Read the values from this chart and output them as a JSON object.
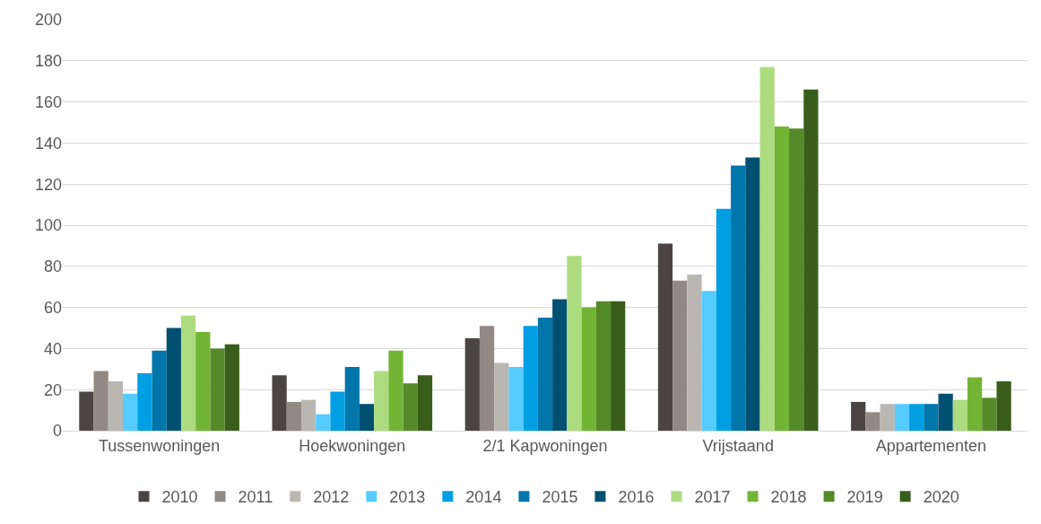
{
  "chart_data": {
    "type": "bar",
    "categories": [
      "Tussenwoningen",
      "Hoekwoningen",
      "2/1 Kapwoningen",
      "Vrijstaand",
      "Appartementen"
    ],
    "series": [
      {
        "name": "2010",
        "color": "#4a4542",
        "values": [
          19,
          27,
          45,
          91,
          14
        ]
      },
      {
        "name": "2011",
        "color": "#908984",
        "values": [
          29,
          14,
          51,
          73,
          9
        ]
      },
      {
        "name": "2012",
        "color": "#bab7b3",
        "values": [
          24,
          15,
          33,
          76,
          13
        ]
      },
      {
        "name": "2013",
        "color": "#55cbff",
        "values": [
          18,
          8,
          31,
          68,
          13
        ]
      },
      {
        "name": "2014",
        "color": "#009fe3",
        "values": [
          28,
          19,
          51,
          108,
          13
        ]
      },
      {
        "name": "2015",
        "color": "#0076ab",
        "values": [
          39,
          31,
          55,
          129,
          13
        ]
      },
      {
        "name": "2016",
        "color": "#005072",
        "values": [
          50,
          13,
          64,
          133,
          18
        ]
      },
      {
        "name": "2017",
        "color": "#acdb80",
        "values": [
          56,
          29,
          85,
          177,
          15
        ]
      },
      {
        "name": "2018",
        "color": "#72b535",
        "values": [
          48,
          39,
          60,
          148,
          26
        ]
      },
      {
        "name": "2019",
        "color": "#558a28",
        "values": [
          40,
          23,
          63,
          147,
          16
        ]
      },
      {
        "name": "2020",
        "color": "#395e1b",
        "values": [
          42,
          27,
          63,
          166,
          24
        ]
      }
    ],
    "ylim": [
      0,
      200
    ],
    "yticks": [
      0,
      20,
      40,
      60,
      80,
      100,
      120,
      140,
      160,
      180,
      200
    ],
    "grid": "y",
    "legend": "bottom"
  }
}
